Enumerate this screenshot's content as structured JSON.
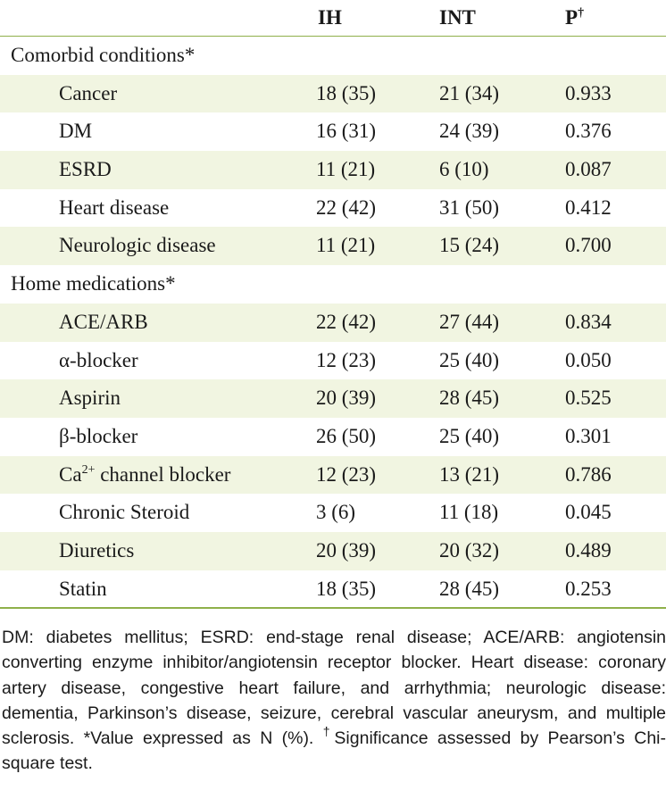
{
  "header": {
    "col_ih": "IH",
    "col_int": "INT",
    "col_p": "P",
    "col_p_mark": "†"
  },
  "sections": {
    "comorbid": "Comorbid conditions*",
    "home_meds": "Home medications*"
  },
  "comorbid_rows": [
    {
      "label": "Cancer",
      "ih": "18 (35)",
      "int": "21 (34)",
      "p": "0.933"
    },
    {
      "label": "DM",
      "ih": "16 (31)",
      "int": "24 (39)",
      "p": "0.376"
    },
    {
      "label": "ESRD",
      "ih": "11 (21)",
      "int": "6 (10)",
      "p": "0.087"
    },
    {
      "label": "Heart disease",
      "ih": "22 (42)",
      "int": "31 (50)",
      "p": "0.412"
    },
    {
      "label": "Neurologic disease",
      "ih": "11 (21)",
      "int": "15 (24)",
      "p": "0.700"
    }
  ],
  "med_rows": [
    {
      "label": "ACE/ARB",
      "ih": "22 (42)",
      "int": "27 (44)",
      "p": "0.834"
    },
    {
      "label": "α-blocker",
      "ih": "12 (23)",
      "int": "25 (40)",
      "p": "0.050"
    },
    {
      "label": "Aspirin",
      "ih": "20 (39)",
      "int": "28 (45)",
      "p": "0.525"
    },
    {
      "label": "β-blocker",
      "ih": "26 (50)",
      "int": "25 (40)",
      "p": "0.301"
    },
    {
      "label": "Ca",
      "label_sup": "2+",
      "label_rest": " channel blocker",
      "ih": "12 (23)",
      "int": "13 (21)",
      "p": "0.786"
    },
    {
      "label": "Chronic Steroid",
      "ih": "3 (6)",
      "int": "11 (18)",
      "p": "0.045"
    },
    {
      "label": "Diuretics",
      "ih": "20 (39)",
      "int": "20 (32)",
      "p": "0.489"
    },
    {
      "label": "Statin",
      "ih": "18 (35)",
      "int": "28 (45)",
      "p": "0.253"
    }
  ],
  "footnote": {
    "part1": "DM: diabetes mellitus; ESRD: end-stage renal disease; ACE/ARB: angiotensin converting enzyme inhibitor/angiotensin receptor blocker. Heart disease: coronary artery disease, congestive heart failure, and arrhythmia; neurologic disease: dementia, Parkinson’s disease, seizure, cerebral vascular aneurysm, and multiple sclerosis. *Value expressed as N (%). ",
    "dagger": "†",
    "part2": "Significance assessed by Pearson’s Chi-square test."
  }
}
